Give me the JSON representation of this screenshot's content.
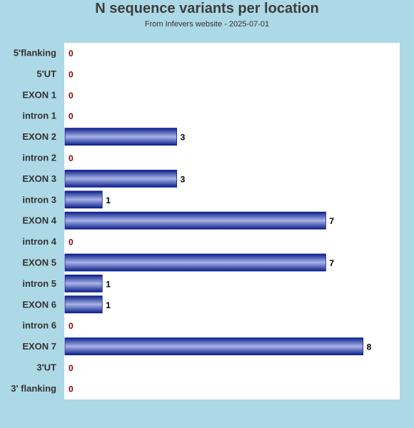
{
  "title": "N sequence variants per location",
  "subtitle": "From Infevers website - 2025-07-01",
  "colors": {
    "background": "#add8e6",
    "plot_area": "#ffffff",
    "bar_edge": "#0b1f8a",
    "bar_center": "#a9b4e8",
    "zero_label": "#8b0000",
    "value_label": "#000000",
    "category_label": "#333333"
  },
  "chart_data": {
    "type": "bar",
    "orientation": "horizontal",
    "title": "N sequence variants per location",
    "subtitle": "From Infevers website - 2025-07-01",
    "categories": [
      "5'flanking",
      "5'UT",
      "EXON 1",
      "intron 1",
      "EXON 2",
      "intron 2",
      "EXON 3",
      "intron 3",
      "EXON 4",
      "intron 4",
      "EXON 5",
      "intron 5",
      "EXON 6",
      "intron 6",
      "EXON 7",
      "3'UT",
      "3' flanking"
    ],
    "values": [
      0,
      0,
      0,
      0,
      3,
      0,
      3,
      1,
      7,
      0,
      7,
      1,
      1,
      0,
      8,
      0,
      0
    ],
    "xlim": [
      0,
      9
    ],
    "grid": false,
    "legend": "none"
  }
}
